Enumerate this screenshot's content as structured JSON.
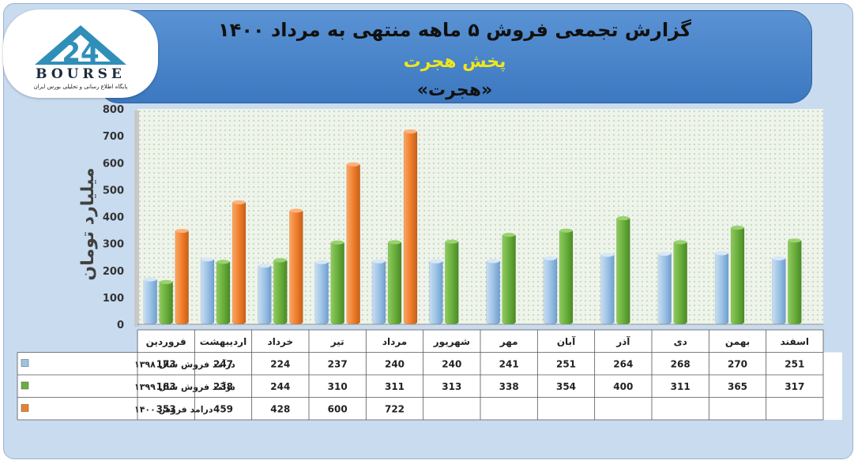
{
  "header": {
    "title": "گزارش تجمعی فروش ۵ ماهه منتهی به مرداد ۱۴۰۰",
    "subtitle": "پخش هجرت",
    "company": "«هجرت»"
  },
  "logo": {
    "text": "BOURSE",
    "tagline": "پایگاه اطلاع رسانی و تحلیلی بورس ایران"
  },
  "chart_data": {
    "type": "bar",
    "ylabel": "میلیارد تومان",
    "ylim": [
      0,
      800
    ],
    "yticks": [
      0,
      100,
      200,
      300,
      400,
      500,
      600,
      700,
      800
    ],
    "grid": false,
    "categories": [
      "فروردین",
      "اردیبهشت",
      "خرداد",
      "تیر",
      "مرداد",
      "شهریور",
      "مهر",
      "آبان",
      "آذر",
      "دی",
      "بهمن",
      "اسفند"
    ],
    "series": [
      {
        "name": "درآمد فروش سال ۱۳۹۸",
        "color": "#9dc3e6",
        "values": [
          173,
          247,
          224,
          237,
          240,
          240,
          241,
          251,
          264,
          268,
          270,
          251
        ]
      },
      {
        "name": "درآمد فروش سال ۱۳۹۹",
        "color": "#6aaf3d",
        "values": [
          163,
          238,
          244,
          310,
          311,
          313,
          338,
          354,
          400,
          311,
          365,
          317
        ]
      },
      {
        "name": "درامد فروش ۱۴۰۰",
        "color": "#f07f2d",
        "values": [
          353,
          459,
          428,
          600,
          722,
          null,
          null,
          null,
          null,
          null,
          null,
          null
        ]
      }
    ]
  }
}
